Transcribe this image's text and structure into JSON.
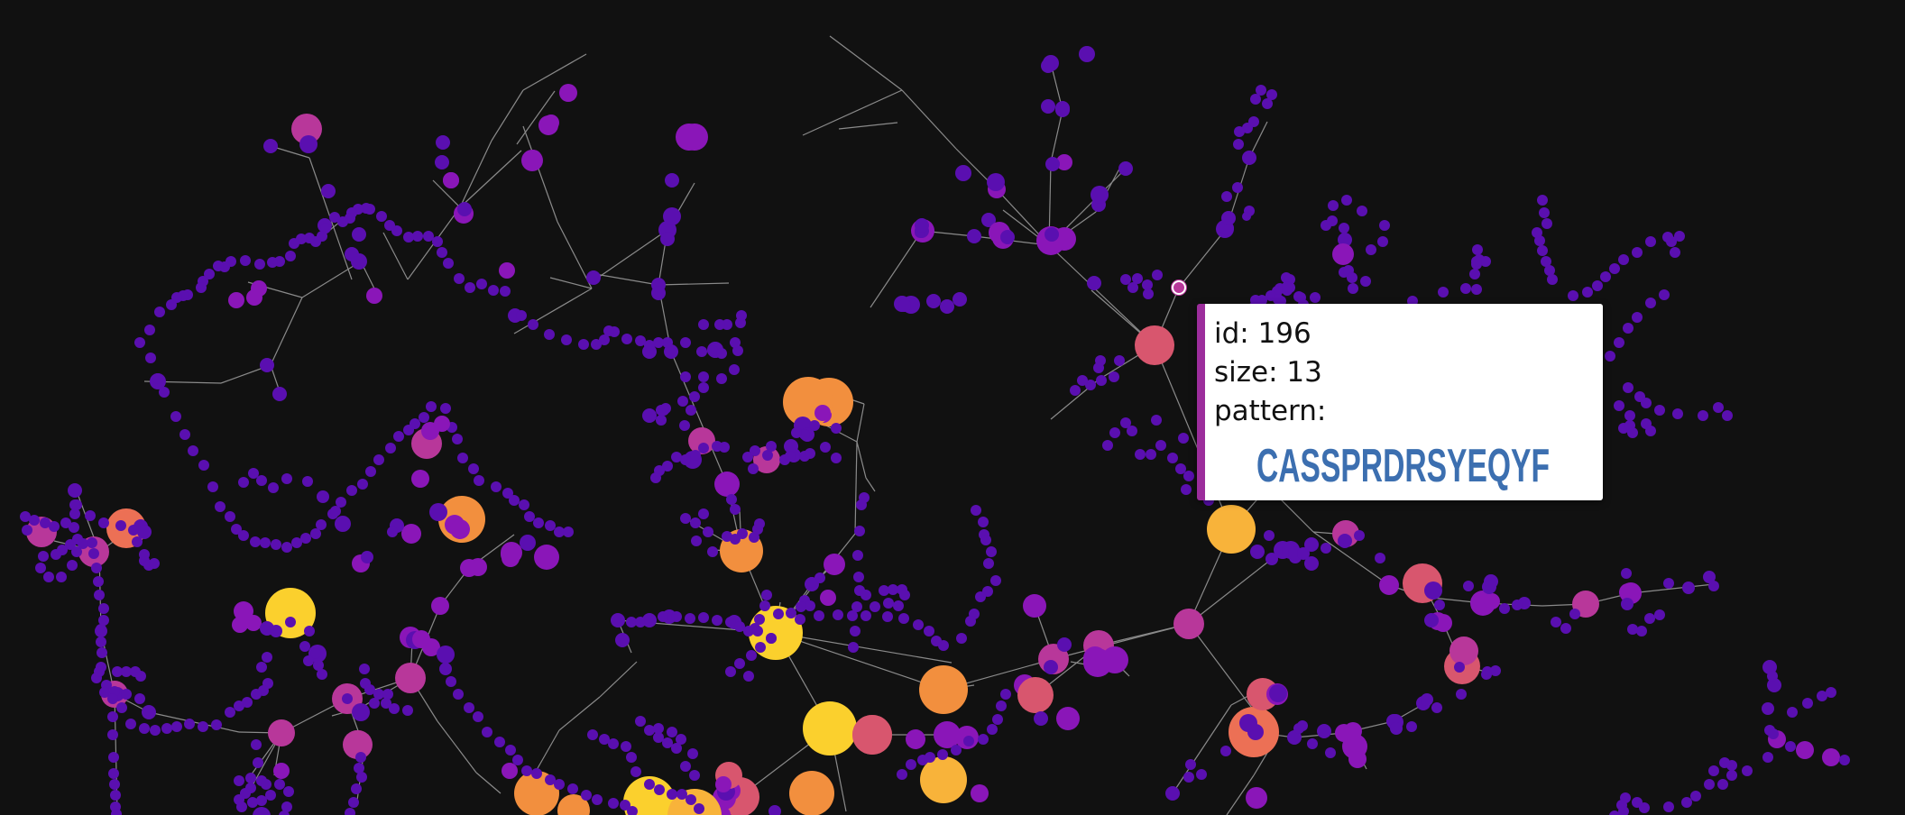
{
  "tooltip": {
    "id_line": "id: 196",
    "size_line": "size: 13",
    "pattern_label": "pattern:",
    "pattern_sequence": "CASSPRDRSYEQYF"
  },
  "colors": {
    "background": "#111111",
    "edge": "#8a8a8a",
    "node_small": "#5a0fb0",
    "node_violet": "#8a16b8",
    "node_magenta": "#b8379a",
    "node_pink": "#d8566e",
    "node_coral": "#ec7055",
    "node_orange": "#f28f3e",
    "node_gold": "#f8b33a",
    "node_yellow": "#fbd02d",
    "tooltip_border": "#9c2d9c"
  }
}
